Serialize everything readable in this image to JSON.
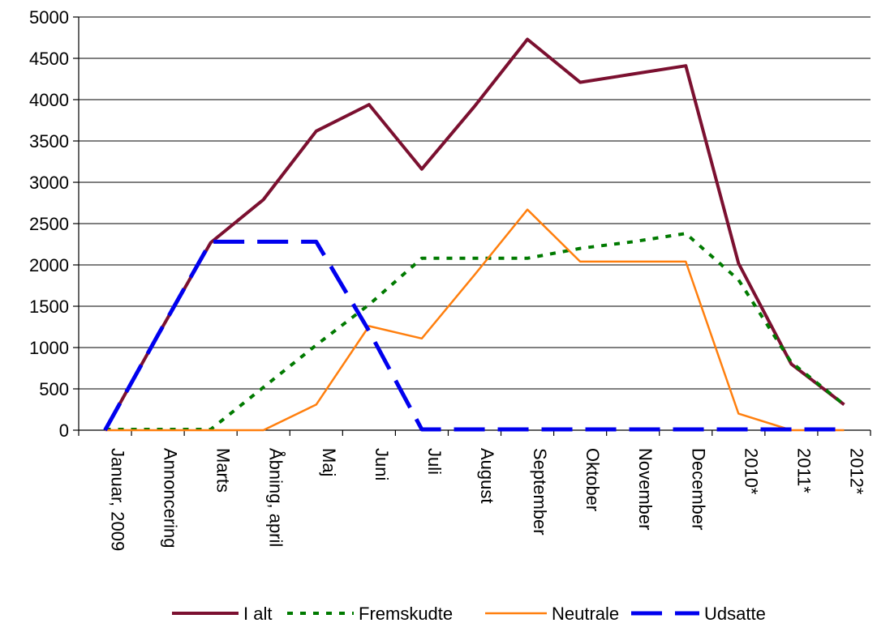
{
  "chart_data": {
    "type": "line",
    "categories": [
      "Januar, 2009",
      "Annoncering",
      "Marts",
      "Åbning, april",
      "Maj",
      "Juni",
      "Juli",
      "August",
      "September",
      "Oktober",
      "November",
      "December",
      "2010*",
      "2011*",
      "2012*"
    ],
    "series": [
      {
        "name": "I alt",
        "color": "#7b1030",
        "dash": "solid",
        "width": 4,
        "values": [
          0,
          1150,
          2270,
          2790,
          3620,
          3940,
          3160,
          3920,
          4730,
          4210,
          4310,
          4410,
          2020,
          800,
          310
        ]
      },
      {
        "name": "Fremskudte",
        "color": "#007a00",
        "dash": "dotted",
        "width": 4,
        "values": [
          10,
          10,
          10,
          520,
          1030,
          1520,
          2080,
          2080,
          2080,
          2200,
          2280,
          2380,
          1820,
          820,
          310
        ]
      },
      {
        "name": "Neutrale",
        "color": "#ff7f0e",
        "dash": "solid",
        "width": 2.5,
        "values": [
          0,
          0,
          0,
          0,
          310,
          1260,
          1110,
          1880,
          2670,
          2040,
          2040,
          2040,
          200,
          0,
          0
        ]
      },
      {
        "name": "Udsatte",
        "color": "#0000ee",
        "dash": "dashed",
        "width": 5,
        "values": [
          0,
          1150,
          2280,
          2280,
          2280,
          1200,
          10,
          10,
          10,
          10,
          10,
          10,
          10,
          10,
          10
        ]
      }
    ],
    "ylim": [
      0,
      5000
    ],
    "yticks": [
      0,
      500,
      1000,
      1500,
      2000,
      2500,
      3000,
      3500,
      4000,
      4500,
      5000
    ],
    "grid": true,
    "legend_position": "bottom"
  }
}
